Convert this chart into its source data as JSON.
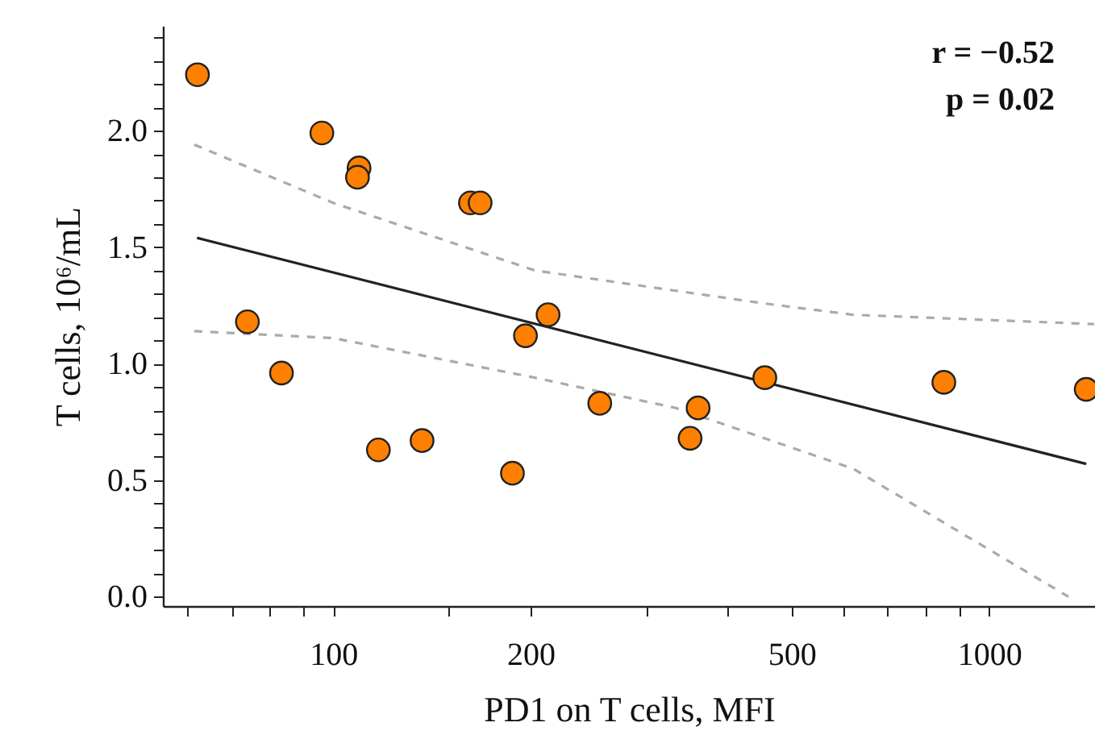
{
  "chart_data": {
    "type": "scatter",
    "xlabel": "PD1 on T cells, MFI",
    "ylabel": "T cells, 10⁶/mL",
    "annotations": [
      "r =  −0.52",
      "p =    0.02"
    ],
    "log": "x",
    "grid": false,
    "marker": "circle",
    "xlim": [
      55,
      1450
    ],
    "ylim": [
      -0.04,
      2.45
    ],
    "xticks": [
      {
        "value": 60,
        "label": null
      },
      {
        "value": 70,
        "label": null
      },
      {
        "value": 80,
        "label": null
      },
      {
        "value": 90,
        "label": null
      },
      100,
      {
        "value": 150,
        "label": null
      },
      200,
      {
        "value": 300,
        "label": null
      },
      {
        "value": 400,
        "label": null
      },
      500,
      {
        "value": 600,
        "label": null
      },
      {
        "value": 700,
        "label": null
      },
      {
        "value": 800,
        "label": null
      },
      {
        "value": 900,
        "label": null
      },
      1000
    ],
    "yticks": [
      {
        "value": 0,
        "label": "0.0"
      },
      {
        "value": 0.1,
        "label": null
      },
      {
        "value": 0.2,
        "label": null
      },
      {
        "value": 0.3,
        "label": null
      },
      {
        "value": 0.4,
        "label": null
      },
      0.5,
      {
        "value": 0.6,
        "label": null
      },
      {
        "value": 0.7,
        "label": null
      },
      {
        "value": 0.8,
        "label": null
      },
      {
        "value": 0.9,
        "label": null
      },
      {
        "value": 1,
        "label": "1.0"
      },
      {
        "value": 1.1,
        "label": null
      },
      {
        "value": 1.2,
        "label": null
      },
      {
        "value": 1.3,
        "label": null
      },
      {
        "value": 1.4,
        "label": null
      },
      1.5,
      {
        "value": 1.6,
        "label": null
      },
      {
        "value": 1.7,
        "label": null
      },
      {
        "value": 1.8,
        "label": null
      },
      {
        "value": 1.9,
        "label": null
      },
      {
        "value": 2,
        "label": "2.0"
      },
      {
        "value": 2.1,
        "label": null
      },
      {
        "value": 2.2,
        "label": null
      },
      {
        "value": 2.3,
        "label": null
      },
      {
        "value": 2.4,
        "label": null
      }
    ],
    "series": [
      {
        "type": "line",
        "color": "#aaaaaa",
        "line_style": "dashed",
        "marker": "none",
        "x": [
          61.4,
          100,
          203,
          450,
          620,
          1445
        ],
        "values": [
          1.94,
          1.69,
          1.4,
          1.26,
          1.21,
          1.17
        ]
      },
      {
        "type": "line",
        "color": "#aaaaaa",
        "line_style": "dashed",
        "marker": "none",
        "x": [
          61.4,
          100,
          203,
          333,
          620,
          1321
        ],
        "values": [
          1.14,
          1.11,
          0.94,
          0.81,
          0.55,
          0.0
        ]
      },
      {
        "type": "line",
        "color": "#222222",
        "line_style": "solid",
        "marker": "none",
        "x": [
          62,
          1406
        ],
        "values": [
          1.54,
          0.57
        ]
      },
      {
        "color": "#ff8000",
        "x": [
          62.1,
          74.0,
          83.4,
          96.1,
          109.5,
          108.9,
          117.2,
          136.6,
          161.9,
          167.5,
          187.6,
          196.4,
          212.6,
          254.9,
          350,
          360,
          455,
          853,
          1406
        ],
        "values": [
          2.24,
          1.18,
          0.96,
          1.99,
          1.84,
          1.8,
          0.63,
          0.67,
          1.69,
          1.69,
          0.53,
          1.12,
          1.21,
          0.83,
          0.68,
          0.81,
          0.94,
          0.92,
          0.89
        ]
      }
    ]
  }
}
